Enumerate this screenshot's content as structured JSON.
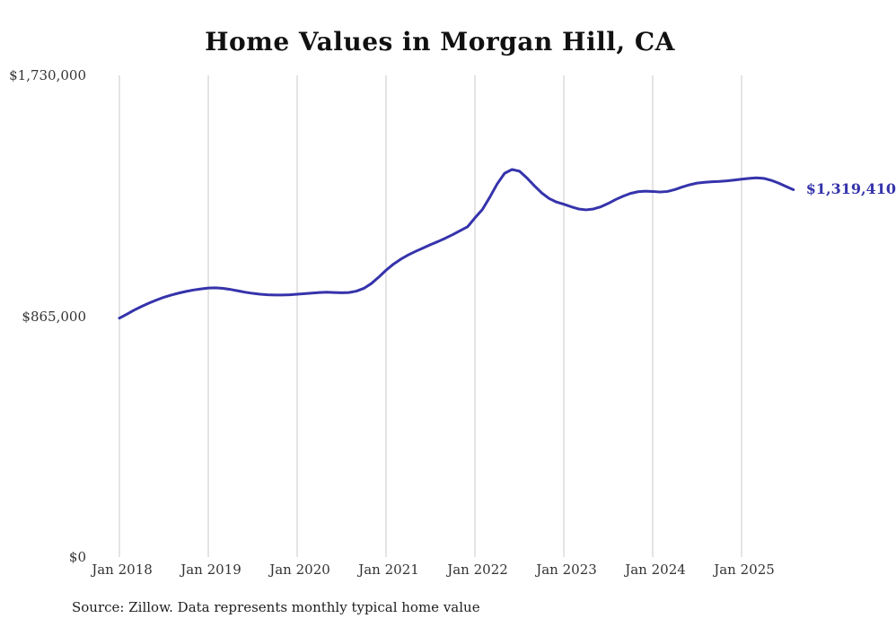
{
  "chart_data": {
    "type": "line",
    "title": "Home Values in Morgan Hill, CA",
    "source": "Source: Zillow. Data represents monthly typical home value",
    "end_label": "$1,319,410",
    "line_color": "#3533ab",
    "gridline_color": "#c9c9c9",
    "grid": "vertical-only",
    "ylim": [
      0,
      1730000
    ],
    "y_tick_labels": [
      "$0",
      "$865,000",
      "$1,730,000"
    ],
    "x_tick_labels": [
      "Jan 2018",
      "Jan 2019",
      "Jan 2020",
      "Jan 2021",
      "Jan 2022",
      "Jan 2023",
      "Jan 2024",
      "Jan 2025"
    ],
    "x_start": "Jan 2018",
    "x_end": "Aug 2025",
    "points_per_year": 12,
    "series_name": "Typical home value ($)",
    "values": [
      858000,
      872000,
      887000,
      900000,
      912000,
      923000,
      933000,
      941000,
      948000,
      954000,
      959000,
      963000,
      966000,
      967000,
      965000,
      961000,
      956000,
      951000,
      947000,
      944000,
      942000,
      941000,
      941000,
      942000,
      944000,
      946000,
      948000,
      950000,
      951000,
      950000,
      949000,
      950000,
      955000,
      965000,
      982000,
      1005000,
      1030000,
      1052000,
      1070000,
      1085000,
      1098000,
      1110000,
      1122000,
      1133000,
      1145000,
      1158000,
      1172000,
      1186000,
      1218000,
      1248000,
      1292000,
      1340000,
      1378000,
      1392000,
      1386000,
      1362000,
      1334000,
      1308000,
      1288000,
      1275000,
      1267000,
      1258000,
      1250000,
      1247000,
      1250000,
      1258000,
      1270000,
      1284000,
      1296000,
      1306000,
      1312000,
      1314000,
      1313000,
      1311000,
      1313000,
      1320000,
      1329000,
      1337000,
      1343000,
      1346000,
      1348000,
      1349000,
      1351000,
      1354000,
      1357000,
      1360000,
      1362000,
      1360000,
      1353000,
      1343000,
      1331000,
      1319410
    ]
  }
}
